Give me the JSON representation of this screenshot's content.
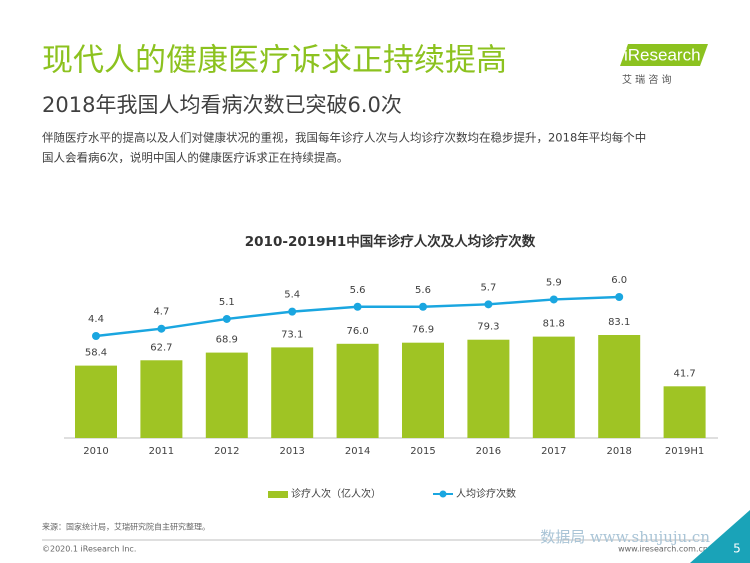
{
  "header": {
    "title": "现代人的健康医疗诉求正持续提高",
    "subtitle": "2018年我国人均看病次数已突破6.0次",
    "text_lines": [
      "伴随医疗水平的提高以及人们对健康状况的重视，我国每年诊疗人次与人均诊疗次数均在稳步提升，2018年平均每个中",
      "国人会看病6次，说明中国人的健康医疗诉求正在持续提高。"
    ]
  },
  "logo": {
    "name": "iResearch",
    "sub": "艾 瑞 咨 询"
  },
  "chart_data": {
    "type": "bar",
    "title": "2010-2019H1中国年诊疗人次及人均诊疗次数",
    "categories": [
      "2010",
      "2011",
      "2012",
      "2013",
      "2014",
      "2015",
      "2016",
      "2017",
      "2018",
      "2019H1"
    ],
    "series": [
      {
        "name": "诊疗人次（亿人次）",
        "type": "bar",
        "color": "#9fc424",
        "values": [
          58.4,
          62.7,
          68.9,
          73.1,
          76.0,
          76.9,
          79.3,
          81.8,
          83.1,
          41.7
        ],
        "value_labels": [
          "58.4",
          "62.7",
          "68.9",
          "73.1",
          "76.0",
          "76.9",
          "79.3",
          "81.8",
          "83.1",
          "41.7"
        ]
      },
      {
        "name": "人均诊疗次数",
        "type": "line",
        "color": "#1aa6e0",
        "values": [
          4.4,
          4.7,
          5.1,
          5.4,
          5.6,
          5.6,
          5.7,
          5.9,
          6.0,
          null
        ],
        "value_labels": [
          "4.4",
          "4.7",
          "5.1",
          "5.4",
          "5.6",
          "5.6",
          "5.7",
          "5.9",
          "6.0",
          null
        ]
      }
    ],
    "legend": "bottom"
  },
  "footer": {
    "source": "来源：国家统计局，艾瑞研究院自主研究整理。",
    "copyright": "©2020.1 iResearch Inc.",
    "website": "www.iresearch.com.cn",
    "page": "5",
    "watermark": "数据局 www.shujuju.cn"
  }
}
